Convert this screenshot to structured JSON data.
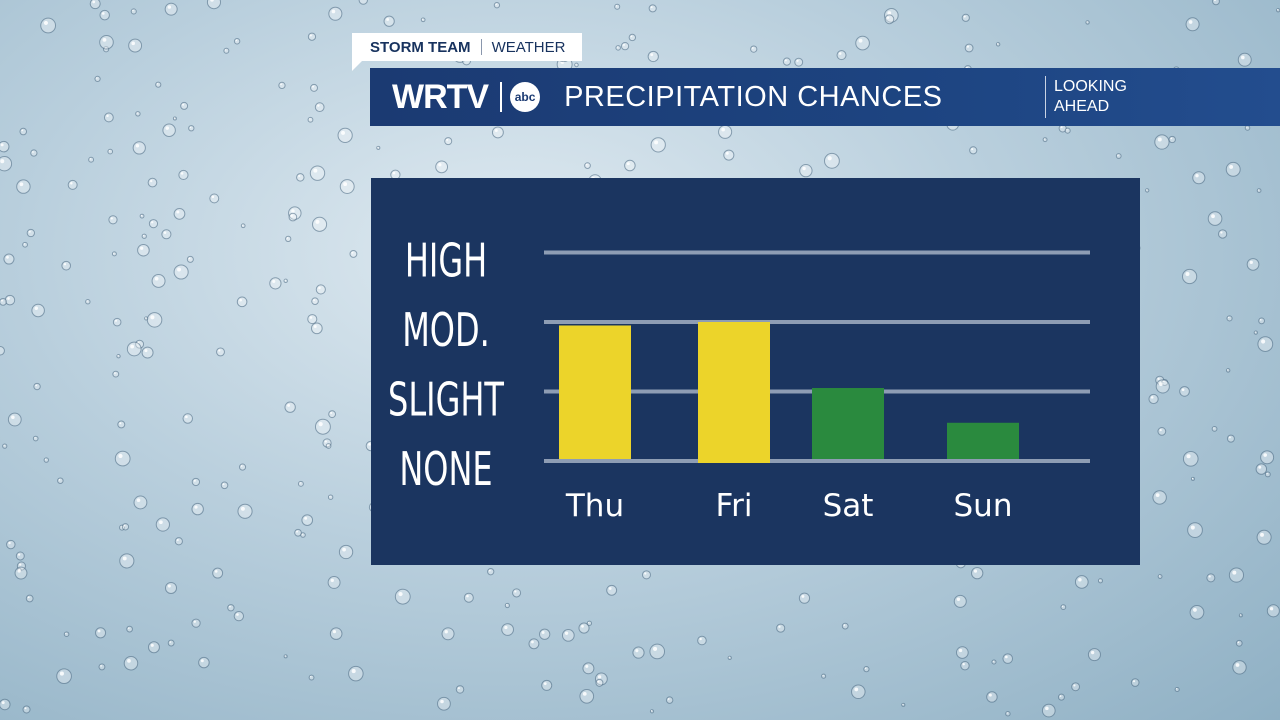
{
  "tag": {
    "primary": "STORM TEAM",
    "secondary": "WEATHER"
  },
  "banner": {
    "brand": "WRTV",
    "network": "abc",
    "title": "PRECIPITATION CHANCES",
    "right_line1": "LOOKING",
    "right_line2": "AHEAD"
  },
  "colors": {
    "moderate": "#ecd42a",
    "slight": "#2a8a3e",
    "panel": "#1b3560",
    "gridline": "#8e9db4"
  },
  "chart_data": {
    "type": "bar",
    "title": "PRECIPITATION CHANCES",
    "categories": [
      "Thu",
      "Fri",
      "Sat",
      "Sun"
    ],
    "levels": [
      "NONE",
      "SLIGHT",
      "MOD.",
      "HIGH"
    ],
    "values": [
      1.95,
      2.0,
      1.05,
      0.55
    ],
    "ylim": [
      0,
      3
    ],
    "bar_colors": [
      "#ecd42a",
      "#ecd42a",
      "#2a8a3e",
      "#2a8a3e"
    ],
    "grid": true,
    "xlabel": "",
    "ylabel": ""
  }
}
